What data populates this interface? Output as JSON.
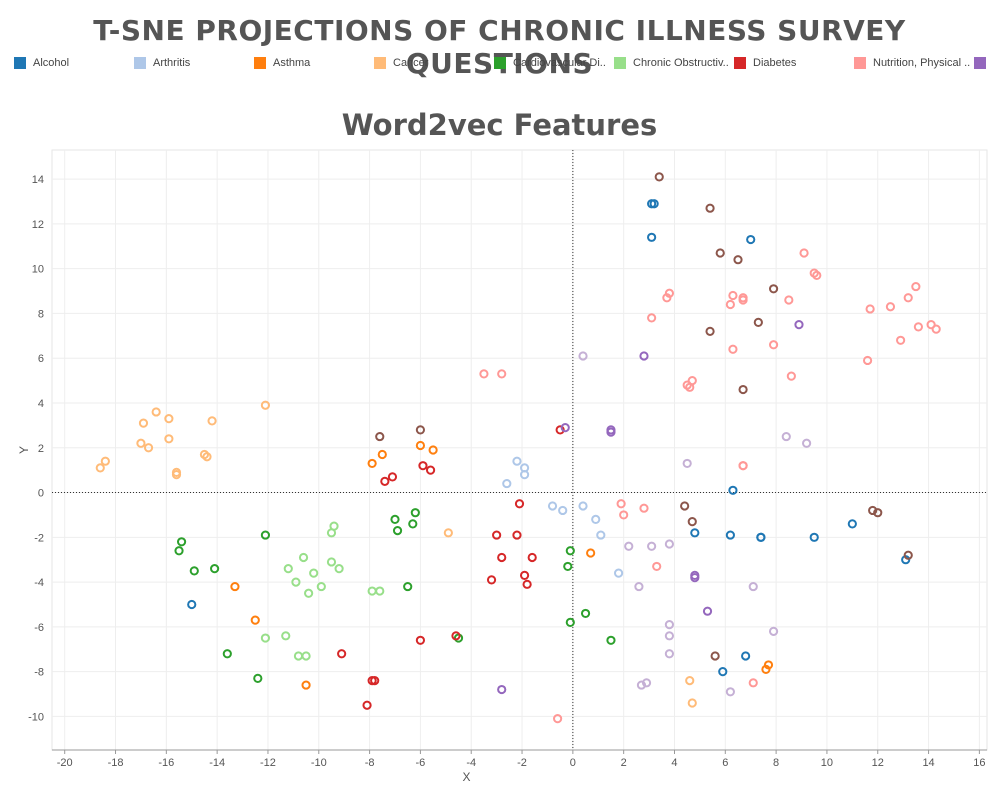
{
  "title": "T-SNE PROJECTIONS OF CHRONIC ILLNESS SURVEY QUESTIONS",
  "legend": [
    {
      "label": "Alcohol",
      "color": "#1f77b4"
    },
    {
      "label": "Arthritis",
      "color": "#aec7e8"
    },
    {
      "label": "Asthma",
      "color": "#ff7f0e"
    },
    {
      "label": "Cancer",
      "color": "#ffbb78"
    },
    {
      "label": "Cardiovascular Di..",
      "color": "#2ca02c"
    },
    {
      "label": "Chronic Obstructiv..",
      "color": "#98df8a"
    },
    {
      "label": "Diabetes",
      "color": "#d62728"
    },
    {
      "label": "Nutrition, Physical ..",
      "color": "#ff9896"
    },
    {
      "label": "",
      "color": "#9467bd"
    }
  ],
  "chart_data": {
    "type": "scatter",
    "title": "Word2vec Features",
    "xlabel": "X",
    "ylabel": "Y",
    "xlim": [
      -20.5,
      16.3
    ],
    "ylim": [
      -11.5,
      15.3
    ],
    "x_ticks": [
      -20,
      -18,
      -16,
      -14,
      -12,
      -10,
      -8,
      -6,
      -4,
      -2,
      0,
      2,
      4,
      6,
      8,
      10,
      12,
      14,
      16
    ],
    "y_ticks": [
      -10,
      -8,
      -6,
      -4,
      -2,
      0,
      2,
      4,
      6,
      8,
      10,
      12,
      14
    ],
    "grid": true,
    "zero_lines": true,
    "series": [
      {
        "name": "Alcohol",
        "color": "#1f77b4",
        "points": [
          [
            3.1,
            12.9
          ],
          [
            3.2,
            12.9
          ],
          [
            3.1,
            11.4
          ],
          [
            7.0,
            11.3
          ],
          [
            6.3,
            0.1
          ],
          [
            4.8,
            -1.8
          ],
          [
            6.2,
            -1.9
          ],
          [
            7.4,
            -2.0
          ],
          [
            7.4,
            -2.0
          ],
          [
            9.5,
            -2.0
          ],
          [
            11.0,
            -1.4
          ],
          [
            13.1,
            -3.0
          ],
          [
            -15.0,
            -5.0
          ],
          [
            5.9,
            -8.0
          ],
          [
            6.8,
            -7.3
          ]
        ]
      },
      {
        "name": "Arthritis",
        "color": "#aec7e8",
        "points": [
          [
            -2.2,
            1.4
          ],
          [
            -1.9,
            1.1
          ],
          [
            -1.9,
            0.8
          ],
          [
            -2.6,
            0.4
          ],
          [
            -0.8,
            -0.6
          ],
          [
            -0.4,
            -0.8
          ],
          [
            0.4,
            -0.6
          ],
          [
            0.9,
            -1.2
          ],
          [
            1.1,
            -1.9
          ],
          [
            1.8,
            -3.6
          ]
        ]
      },
      {
        "name": "Asthma",
        "color": "#ff7f0e",
        "points": [
          [
            -7.5,
            1.7
          ],
          [
            -7.9,
            1.3
          ],
          [
            -6.0,
            2.1
          ],
          [
            -5.5,
            1.9
          ],
          [
            0.7,
            -2.7
          ],
          [
            -13.3,
            -4.2
          ],
          [
            -12.5,
            -5.7
          ],
          [
            -10.5,
            -8.6
          ],
          [
            7.7,
            -7.7
          ],
          [
            7.6,
            -7.9
          ]
        ]
      },
      {
        "name": "Cancer",
        "color": "#ffbb78",
        "points": [
          [
            -12.1,
            3.9
          ],
          [
            -16.4,
            3.6
          ],
          [
            -15.9,
            3.3
          ],
          [
            -14.2,
            3.2
          ],
          [
            -16.9,
            3.1
          ],
          [
            -14.5,
            1.7
          ],
          [
            -14.4,
            1.6
          ],
          [
            -17.0,
            2.2
          ],
          [
            -15.9,
            2.4
          ],
          [
            -16.7,
            2.0
          ],
          [
            -15.6,
            0.9
          ],
          [
            -15.6,
            0.8
          ],
          [
            -18.4,
            1.4
          ],
          [
            -18.6,
            1.1
          ],
          [
            -4.9,
            -1.8
          ],
          [
            4.6,
            -8.4
          ],
          [
            4.7,
            -9.4
          ]
        ]
      },
      {
        "name": "Cardiovascular Di..",
        "color": "#2ca02c",
        "points": [
          [
            -15.4,
            -2.2
          ],
          [
            -15.5,
            -2.6
          ],
          [
            -14.9,
            -3.5
          ],
          [
            -14.1,
            -3.4
          ],
          [
            -12.1,
            -1.9
          ],
          [
            -13.6,
            -7.2
          ],
          [
            -12.4,
            -8.3
          ],
          [
            -7.0,
            -1.2
          ],
          [
            -6.9,
            -1.7
          ],
          [
            -6.2,
            -0.9
          ],
          [
            -6.3,
            -1.4
          ],
          [
            -6.5,
            -4.2
          ],
          [
            -4.5,
            -6.5
          ],
          [
            -0.1,
            -2.6
          ],
          [
            -0.2,
            -3.3
          ],
          [
            0.5,
            -5.4
          ],
          [
            -0.1,
            -5.8
          ],
          [
            1.5,
            -6.6
          ]
        ]
      },
      {
        "name": "Chronic Obstructiv..",
        "color": "#98df8a",
        "points": [
          [
            -9.4,
            -1.5
          ],
          [
            -9.5,
            -1.8
          ],
          [
            -10.6,
            -2.9
          ],
          [
            -11.2,
            -3.4
          ],
          [
            -9.5,
            -3.1
          ],
          [
            -9.2,
            -3.4
          ],
          [
            -10.2,
            -3.6
          ],
          [
            -10.9,
            -4.0
          ],
          [
            -9.9,
            -4.2
          ],
          [
            -10.4,
            -4.5
          ],
          [
            -12.1,
            -6.5
          ],
          [
            -11.3,
            -6.4
          ],
          [
            -10.8,
            -7.3
          ],
          [
            -10.5,
            -7.3
          ],
          [
            -7.9,
            -4.4
          ],
          [
            -7.6,
            -4.4
          ]
        ]
      },
      {
        "name": "Diabetes",
        "color": "#d62728",
        "points": [
          [
            -7.4,
            0.5
          ],
          [
            -7.1,
            0.7
          ],
          [
            -5.9,
            1.2
          ],
          [
            -5.6,
            1.0
          ],
          [
            -0.5,
            2.8
          ],
          [
            -2.1,
            -0.5
          ],
          [
            -3.0,
            -1.9
          ],
          [
            -2.2,
            -1.9
          ],
          [
            -2.8,
            -2.9
          ],
          [
            -1.6,
            -2.9
          ],
          [
            -3.2,
            -3.9
          ],
          [
            -1.9,
            -3.7
          ],
          [
            -1.8,
            -4.1
          ],
          [
            -6.0,
            -6.6
          ],
          [
            -4.6,
            -6.4
          ],
          [
            -9.1,
            -7.2
          ],
          [
            -7.9,
            -8.4
          ],
          [
            -7.8,
            -8.4
          ],
          [
            -8.1,
            -9.5
          ]
        ]
      },
      {
        "name": "Nutrition, Physical ..",
        "color": "#ff9896",
        "points": [
          [
            -3.5,
            5.3
          ],
          [
            -2.8,
            5.3
          ],
          [
            3.7,
            8.7
          ],
          [
            3.8,
            8.9
          ],
          [
            3.1,
            7.8
          ],
          [
            4.5,
            4.8
          ],
          [
            4.6,
            4.7
          ],
          [
            4.7,
            5.0
          ],
          [
            6.3,
            8.8
          ],
          [
            6.2,
            8.4
          ],
          [
            6.7,
            8.7
          ],
          [
            6.7,
            8.6
          ],
          [
            6.3,
            6.4
          ],
          [
            7.9,
            6.6
          ],
          [
            8.5,
            8.6
          ],
          [
            8.6,
            5.2
          ],
          [
            9.1,
            10.7
          ],
          [
            9.5,
            9.8
          ],
          [
            9.6,
            9.7
          ],
          [
            11.7,
            8.2
          ],
          [
            11.6,
            5.9
          ],
          [
            12.5,
            8.3
          ],
          [
            13.2,
            8.7
          ],
          [
            13.5,
            9.2
          ],
          [
            12.9,
            6.8
          ],
          [
            13.6,
            7.4
          ],
          [
            14.1,
            7.5
          ],
          [
            14.3,
            7.3
          ],
          [
            6.7,
            1.2
          ],
          [
            6.7,
            1.2
          ],
          [
            1.9,
            -0.5
          ],
          [
            2.0,
            -1.0
          ],
          [
            2.8,
            -0.7
          ],
          [
            3.3,
            -3.3
          ],
          [
            7.1,
            -8.5
          ],
          [
            -0.6,
            -10.1
          ]
        ]
      },
      {
        "name": "",
        "color": "#9467bd",
        "points": [
          [
            -0.3,
            2.9
          ],
          [
            1.5,
            2.8
          ],
          [
            1.5,
            2.7
          ],
          [
            2.8,
            6.1
          ],
          [
            8.9,
            7.5
          ],
          [
            4.8,
            -3.7
          ],
          [
            4.8,
            -3.8
          ],
          [
            5.3,
            -5.3
          ],
          [
            -2.8,
            -8.8
          ]
        ]
      },
      {
        "name": "",
        "color": "#8c564b",
        "points": [
          [
            3.4,
            14.1
          ],
          [
            5.4,
            12.7
          ],
          [
            5.8,
            10.7
          ],
          [
            6.5,
            10.4
          ],
          [
            7.9,
            9.1
          ],
          [
            5.4,
            7.2
          ],
          [
            7.3,
            7.6
          ],
          [
            6.7,
            4.6
          ],
          [
            -7.6,
            2.5
          ],
          [
            -6.0,
            2.8
          ],
          [
            4.4,
            -0.6
          ],
          [
            4.7,
            -1.3
          ],
          [
            11.8,
            -0.8
          ],
          [
            12.0,
            -0.9
          ],
          [
            13.2,
            -2.8
          ],
          [
            5.6,
            -7.3
          ]
        ]
      },
      {
        "name": "",
        "color": "#c5b0d5",
        "points": [
          [
            0.4,
            6.1
          ],
          [
            4.5,
            1.3
          ],
          [
            8.4,
            2.5
          ],
          [
            9.2,
            2.2
          ],
          [
            2.2,
            -2.4
          ],
          [
            3.1,
            -2.4
          ],
          [
            3.8,
            -2.3
          ],
          [
            2.6,
            -4.2
          ],
          [
            7.1,
            -4.2
          ],
          [
            3.8,
            -5.9
          ],
          [
            3.8,
            -6.4
          ],
          [
            7.9,
            -6.2
          ],
          [
            3.8,
            -7.2
          ],
          [
            2.7,
            -8.6
          ],
          [
            2.9,
            -8.5
          ],
          [
            6.2,
            -8.9
          ]
        ]
      }
    ]
  }
}
